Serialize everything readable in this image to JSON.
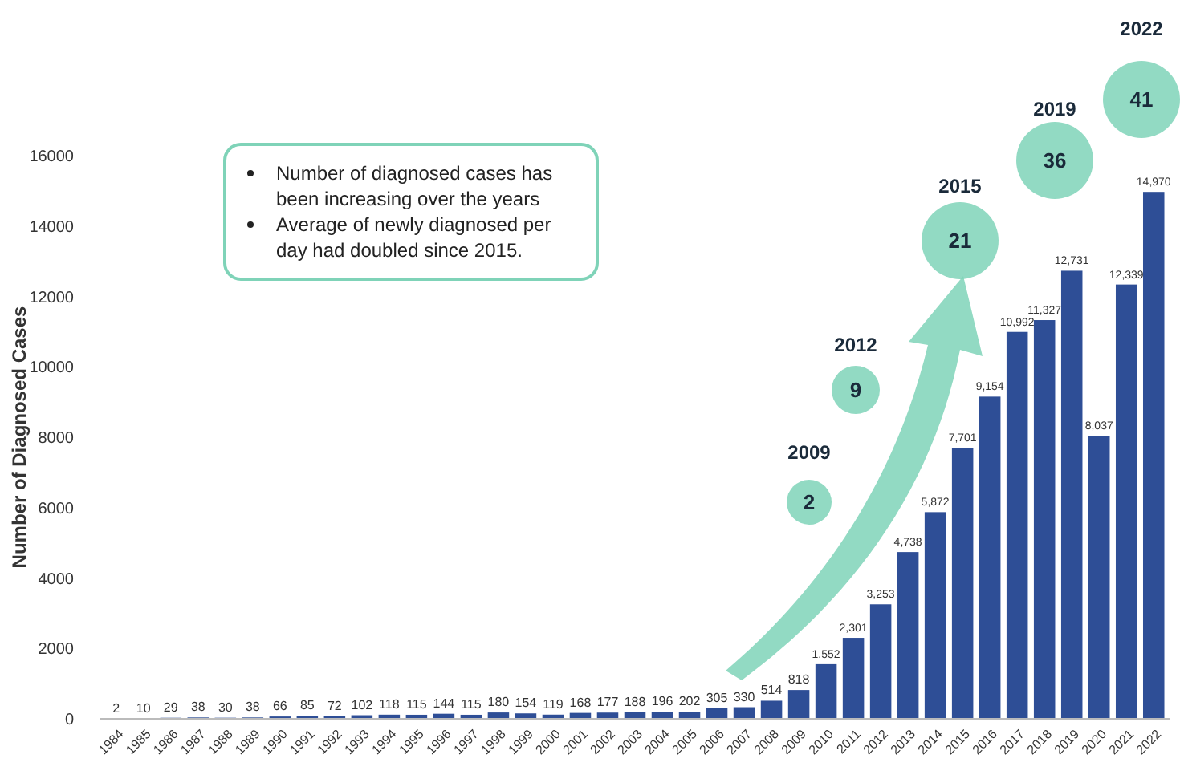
{
  "chart_data": {
    "type": "bar",
    "ylabel": "Number of Diagnosed Cases",
    "categories": [
      "1984",
      "1985",
      "1986",
      "1987",
      "1988",
      "1989",
      "1990",
      "1991",
      "1992",
      "1993",
      "1994",
      "1995",
      "1996",
      "1997",
      "1998",
      "1999",
      "2000",
      "2001",
      "2002",
      "2003",
      "2004",
      "2005",
      "2006",
      "2007",
      "2008",
      "2009",
      "2010",
      "2011",
      "2012",
      "2013",
      "2014",
      "2015",
      "2016",
      "2017",
      "2018",
      "2019",
      "2020",
      "2021",
      "2022"
    ],
    "values": [
      2,
      10,
      29,
      38,
      30,
      38,
      66,
      85,
      72,
      102,
      118,
      115,
      144,
      115,
      180,
      154,
      119,
      168,
      177,
      188,
      196,
      202,
      305,
      330,
      514,
      818,
      1552,
      2301,
      3253,
      4738,
      5872,
      7701,
      9154,
      10992,
      11327,
      12731,
      8037,
      12339,
      14970
    ],
    "value_labels": [
      "2",
      "10",
      "29",
      "38",
      "30",
      "38",
      "66",
      "85",
      "72",
      "102",
      "118",
      "115",
      "144",
      "115",
      "180",
      "154",
      "119",
      "168",
      "177",
      "188",
      "196",
      "202",
      "305",
      "330",
      "514",
      "818",
      "1,552",
      "2,301",
      "3,253",
      "4,738",
      "5,872",
      "7,701",
      "9,154",
      "10,992",
      "11,327",
      "12,731",
      "8,037",
      "12,339",
      "14,970"
    ],
    "color": "#2e4e96",
    "ylim": [
      0,
      16000
    ],
    "yticks": [
      0,
      2000,
      4000,
      6000,
      8000,
      10000,
      12000,
      14000,
      16000
    ],
    "grid": false,
    "annotations": [
      "Number of diagnosed cases has been increasing over the years",
      "Average of newly diagnosed per day had doubled since 2015.",
      "2009",
      "2",
      "2012",
      "9",
      "2015",
      "21",
      "2019",
      "36",
      "2022",
      "41"
    ]
  }
}
